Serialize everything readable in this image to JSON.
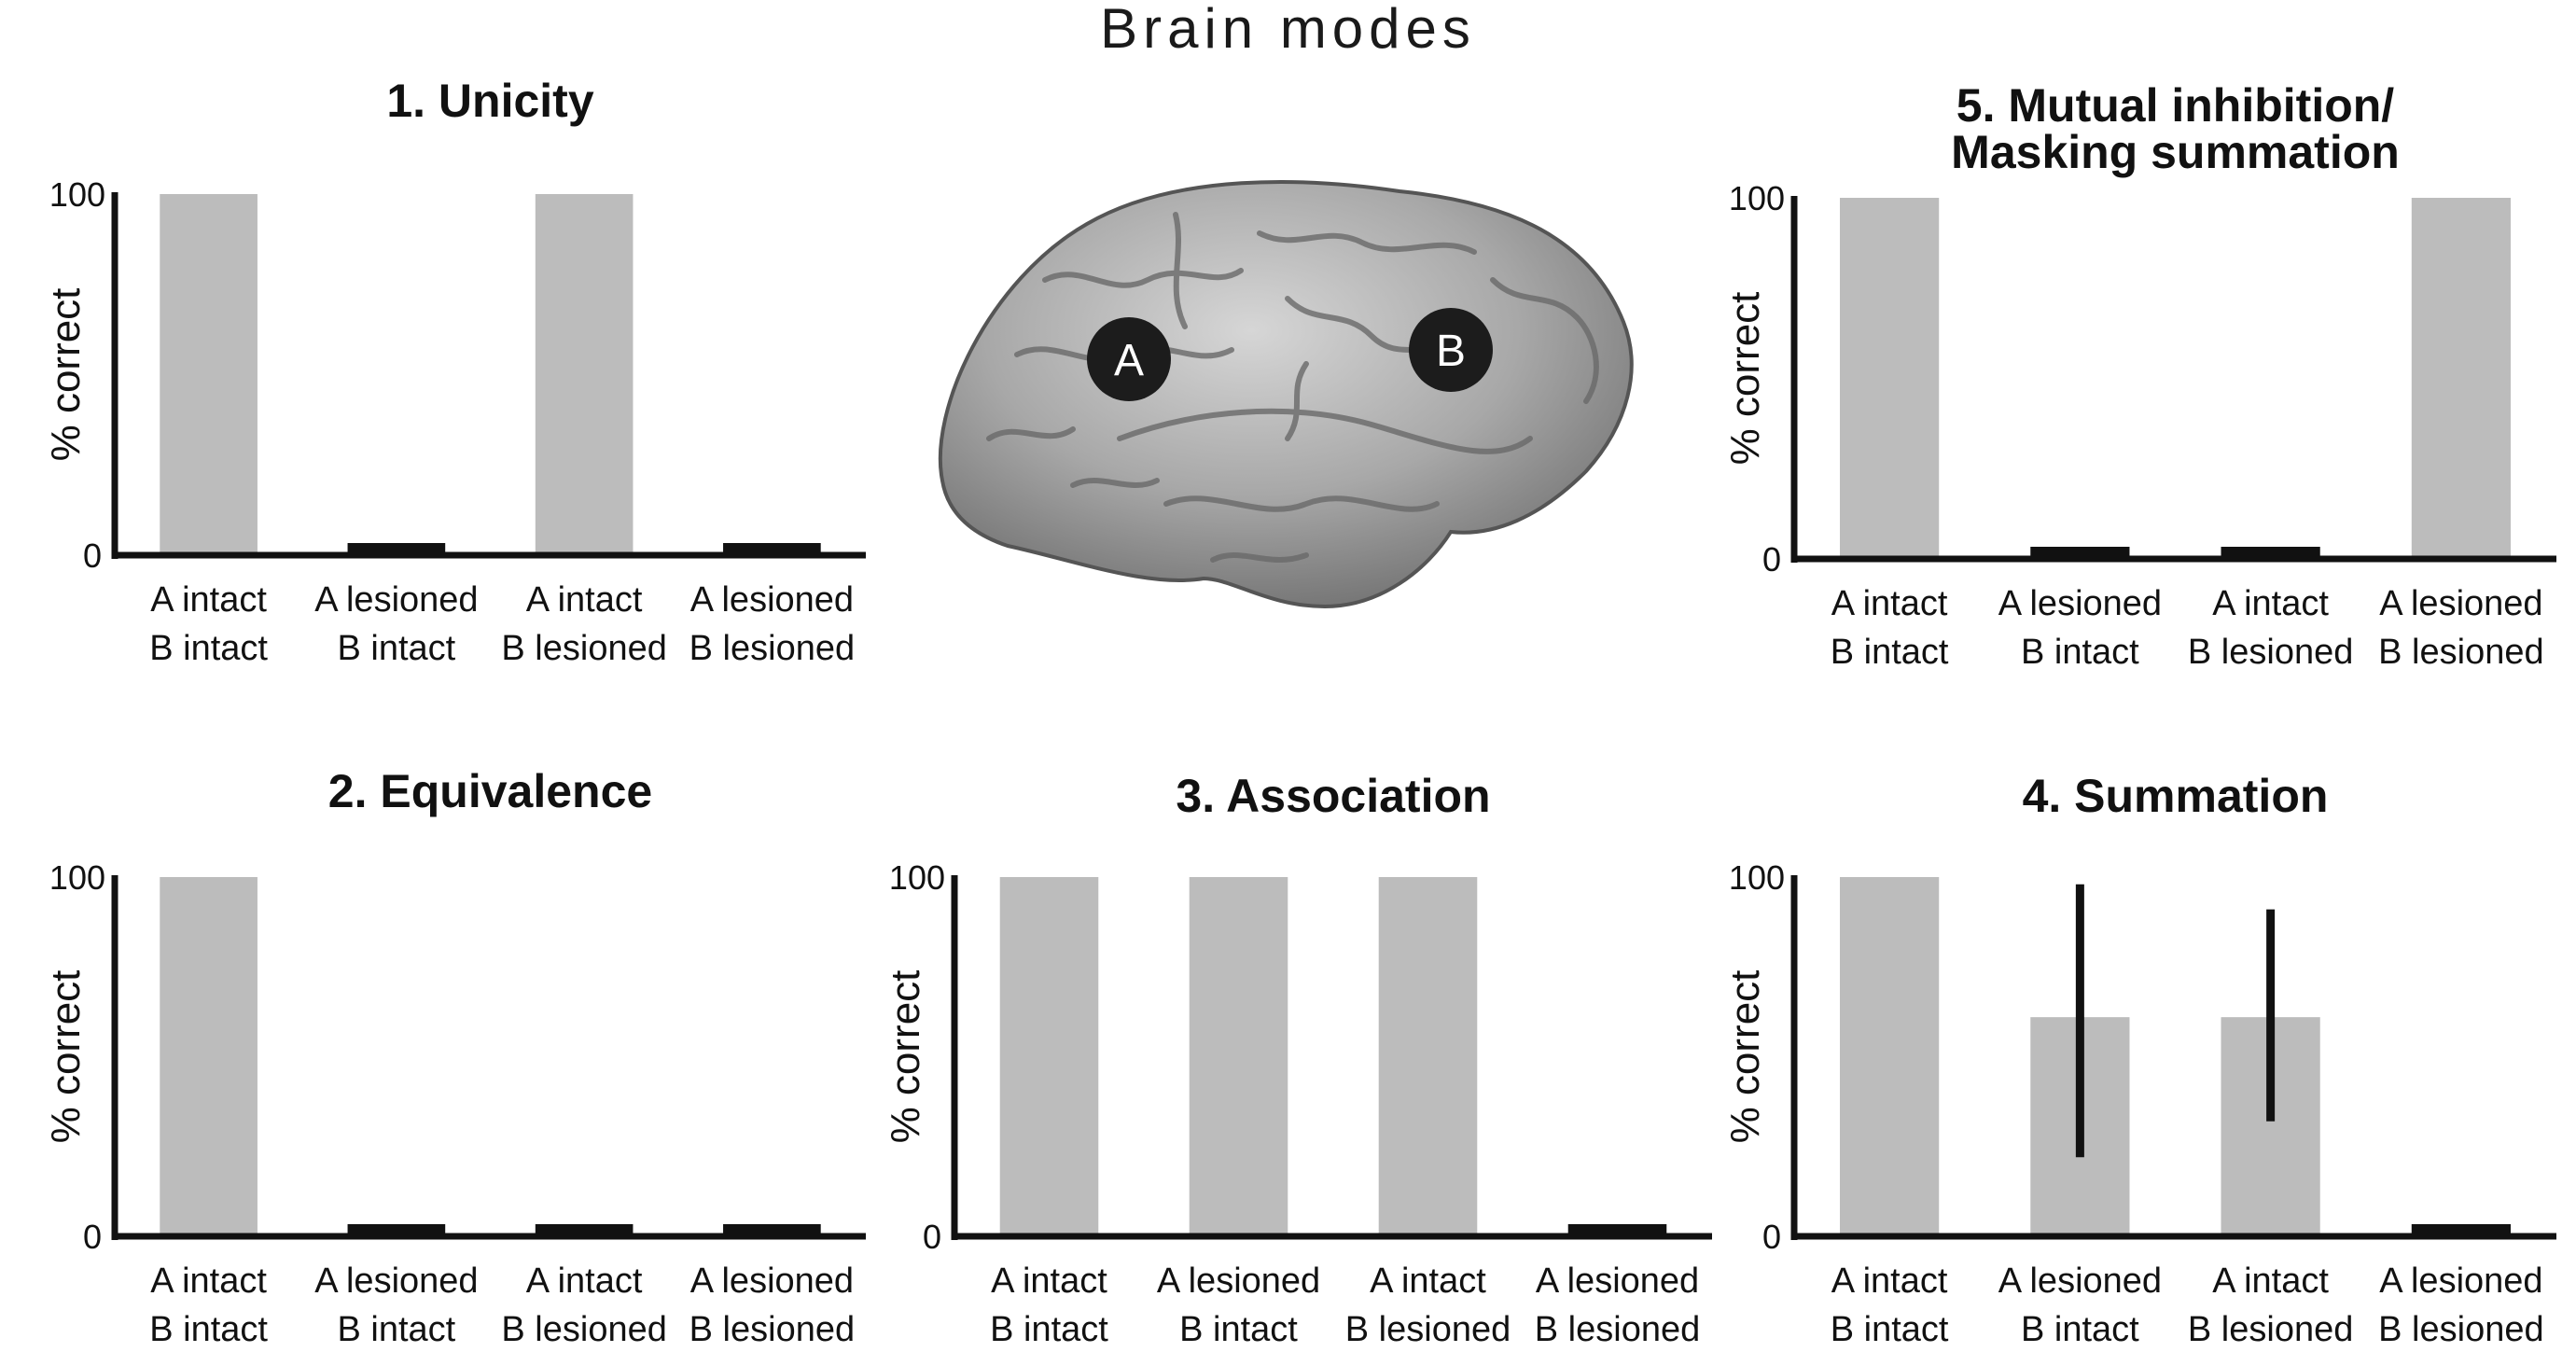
{
  "figure": {
    "title": "Brain modes"
  },
  "brain": {
    "marker_a": "A",
    "marker_b": "B"
  },
  "colors": {
    "bar": "#bcbcbc",
    "axis": "#111111",
    "brain_fill": "#a9a9a9",
    "marker": "#1c1c1c"
  },
  "chart_data": [
    {
      "id": "unicity",
      "type": "bar",
      "title": [
        "1. Unicity"
      ],
      "ylabel": "% correct",
      "ylim": [
        0,
        100
      ],
      "yticks": [
        "100",
        "0"
      ],
      "categories": [
        [
          "A intact",
          "B intact"
        ],
        [
          "A lesioned",
          "B intact"
        ],
        [
          "A intact",
          "B lesioned"
        ],
        [
          "A lesioned",
          "B lesioned"
        ]
      ],
      "values": [
        100,
        0,
        100,
        0
      ],
      "error": null
    },
    {
      "id": "mutual-inhibition",
      "type": "bar",
      "title": [
        "5. Mutual inhibition/",
        "Masking summation"
      ],
      "ylabel": "% correct",
      "ylim": [
        0,
        100
      ],
      "yticks": [
        "100",
        "0"
      ],
      "categories": [
        [
          "A intact",
          "B intact"
        ],
        [
          "A lesioned",
          "B intact"
        ],
        [
          "A intact",
          "B lesioned"
        ],
        [
          "A lesioned",
          "B lesioned"
        ]
      ],
      "values": [
        100,
        0,
        0,
        100
      ],
      "error": null
    },
    {
      "id": "equivalence",
      "type": "bar",
      "title": [
        "2. Equivalence"
      ],
      "ylabel": "% correct",
      "ylim": [
        0,
        100
      ],
      "yticks": [
        "100",
        "0"
      ],
      "categories": [
        [
          "A intact",
          "B intact"
        ],
        [
          "A lesioned",
          "B intact"
        ],
        [
          "A intact",
          "B lesioned"
        ],
        [
          "A lesioned",
          "B lesioned"
        ]
      ],
      "values": [
        100,
        0,
        0,
        0
      ],
      "error": null
    },
    {
      "id": "association",
      "type": "bar",
      "title": [
        "3. Association"
      ],
      "ylabel": "% correct",
      "ylim": [
        0,
        100
      ],
      "yticks": [
        "100",
        "0"
      ],
      "categories": [
        [
          "A intact",
          "B intact"
        ],
        [
          "A lesioned",
          "B intact"
        ],
        [
          "A intact",
          "B lesioned"
        ],
        [
          "A lesioned",
          "B lesioned"
        ]
      ],
      "values": [
        100,
        100,
        100,
        0
      ],
      "error": null
    },
    {
      "id": "summation",
      "type": "bar",
      "title": [
        "4. Summation"
      ],
      "ylabel": "% correct",
      "ylim": [
        0,
        100
      ],
      "yticks": [
        "100",
        "0"
      ],
      "categories": [
        [
          "A intact",
          "B intact"
        ],
        [
          "A lesioned",
          "B intact"
        ],
        [
          "A intact",
          "B lesioned"
        ],
        [
          "A lesioned",
          "B lesioned"
        ]
      ],
      "values": [
        100,
        61,
        61,
        0
      ],
      "error": [
        null,
        [
          22,
          98
        ],
        [
          32,
          91
        ],
        null
      ]
    }
  ]
}
